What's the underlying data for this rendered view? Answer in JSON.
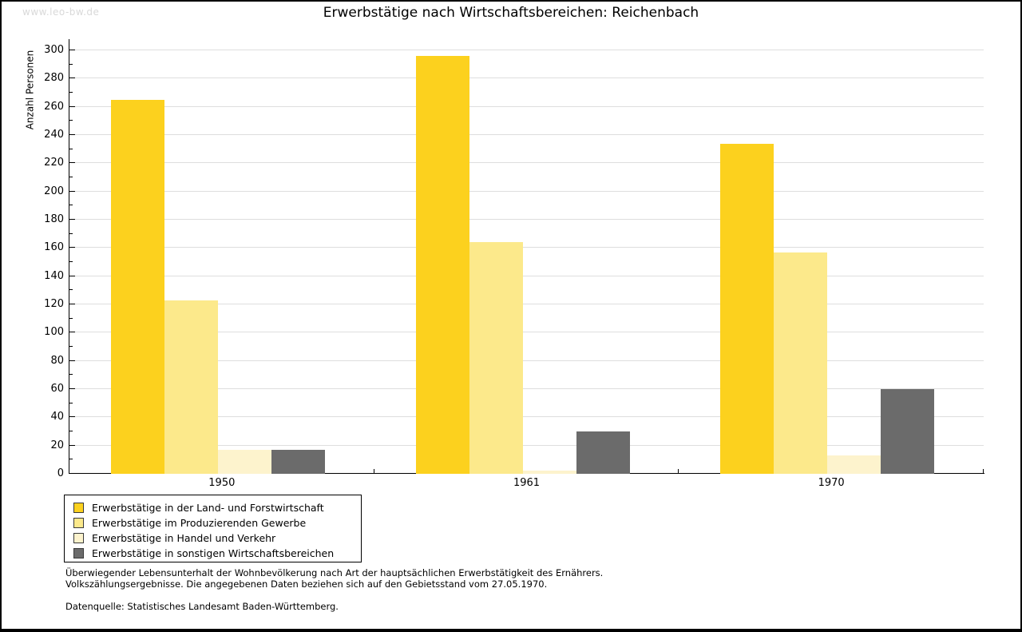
{
  "watermark": "www.leo-bw.de",
  "title": "Erwerbstätige nach Wirtschaftsbereichen: Reichenbach",
  "chart_data": {
    "type": "bar",
    "title": "Erwerbstätige nach Wirtschaftsbereichen: Reichenbach",
    "xlabel": "",
    "ylabel": "Anzahl Personen",
    "ylim": [
      0,
      300
    ],
    "ytick_step": 20,
    "grid": true,
    "legend_position": "bottom-left",
    "categories": [
      "1950",
      "1961",
      "1970"
    ],
    "series": [
      {
        "name": "Erwerbstätige in der Land- und Forstwirtschaft",
        "color": "#fcd11e",
        "values": [
          265,
          296,
          234
        ]
      },
      {
        "name": "Erwerbstätige im Produzierenden Gewerbe",
        "color": "#fce98b",
        "values": [
          123,
          164,
          157
        ]
      },
      {
        "name": "Erwerbstätige in Handel und Verkehr",
        "color": "#fdf3cd",
        "values": [
          17,
          2,
          13
        ]
      },
      {
        "name": "Erwerbstätige in sonstigen Wirtschaftsbereichen",
        "color": "#6b6b6b",
        "values": [
          17,
          30,
          60
        ]
      }
    ]
  },
  "footnotes": {
    "line1": "Überwiegender Lebensunterhalt der Wohnbevölkerung nach Art der hauptsächlichen Erwerbstätigkeit des Ernährers.",
    "line2": "Volkszählungsergebnisse. Die angegebenen Daten beziehen sich auf den Gebietsstand vom 27.05.1970.",
    "source": "Datenquelle: Statistisches Landesamt Baden-Württemberg."
  }
}
